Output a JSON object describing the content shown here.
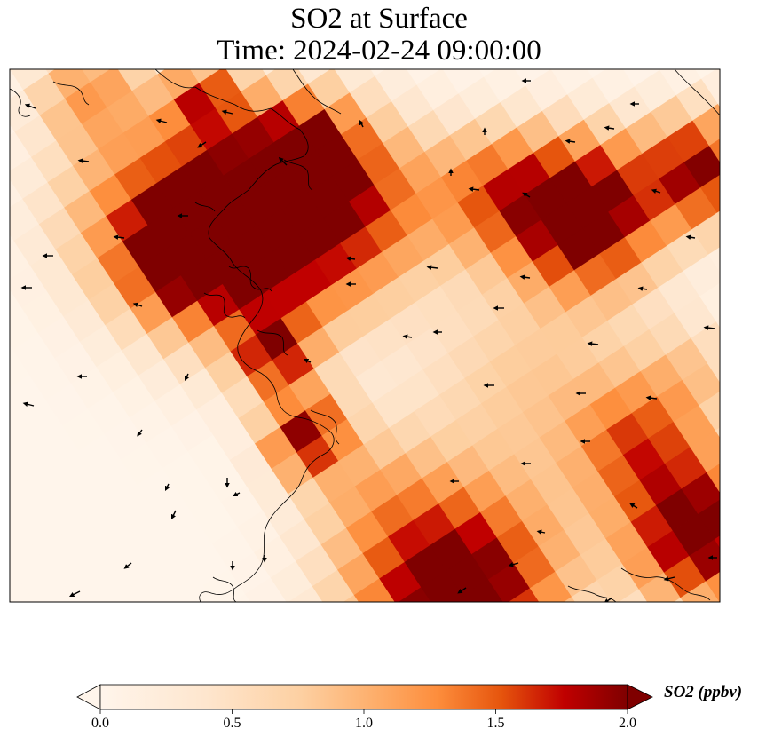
{
  "title": {
    "line1": "SO2 at Surface",
    "line2": "Time: 2024-02-24 09:00:00"
  },
  "colorbar": {
    "label": "SO2 (ppbv)",
    "min": 0.0,
    "max": 2.0,
    "extend": "both",
    "colormap": [
      "#fff5eb",
      "#fee6ce",
      "#fdd0a2",
      "#fdae6b",
      "#fd8d3c",
      "#e6550d",
      "#c00000",
      "#7f0000"
    ],
    "ticks": [
      "0.0",
      "0.5",
      "1.0",
      "1.5",
      "2.0"
    ]
  },
  "chart_data": {
    "type": "heatmap",
    "title": "SO2 at Surface / Time: 2024-02-24 09:00:00",
    "variable": "SO2 (ppbv)",
    "value_range": [
      0.0,
      2.0
    ],
    "overlays": [
      "coastlines",
      "wind vectors"
    ],
    "hotspots": [
      {
        "label": "upper-left plume core",
        "value": 2.0
      },
      {
        "label": "upper-right plume",
        "value": 2.0
      },
      {
        "label": "center band",
        "value": 1.8
      },
      {
        "label": "bottom band",
        "value": 2.0
      },
      {
        "label": "right edge",
        "value": 1.9
      }
    ]
  }
}
